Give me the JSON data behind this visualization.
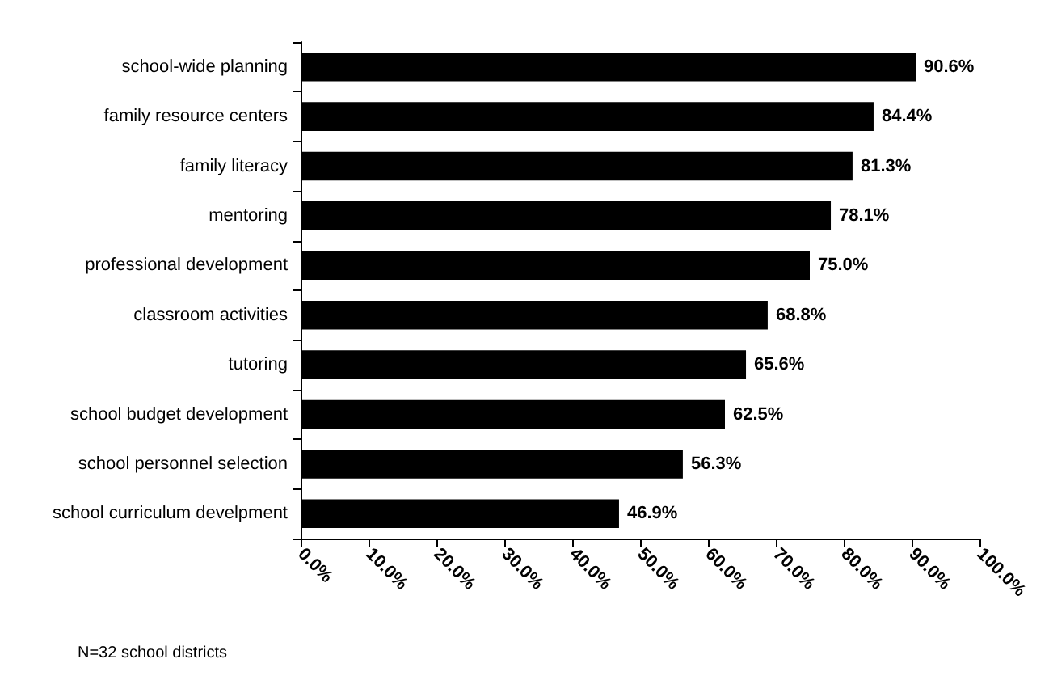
{
  "chart_data": {
    "type": "bar",
    "orientation": "horizontal",
    "categories": [
      "school-wide planning",
      "family resource centers",
      "family literacy",
      "mentoring",
      "professional development",
      "classroom activities",
      "tutoring",
      "school budget development",
      "school personnel selection",
      "school curriculum develpment"
    ],
    "values": [
      90.6,
      84.4,
      81.3,
      78.1,
      75.0,
      68.8,
      65.6,
      62.5,
      56.3,
      46.9
    ],
    "value_labels": [
      "90.6%",
      "84.4%",
      "81.3%",
      "78.1%",
      "75.0%",
      "68.8%",
      "65.6%",
      "62.5%",
      "56.3%",
      "46.9%"
    ],
    "color": "#000000",
    "xlim": [
      0,
      100
    ],
    "xticks": [
      {
        "value": 0,
        "label": "0.0%"
      },
      {
        "value": 10,
        "label": "10.0%"
      },
      {
        "value": 20,
        "label": "20.0%"
      },
      {
        "value": 30,
        "label": "30.0%"
      },
      {
        "value": 40,
        "label": "40.0%"
      },
      {
        "value": 50,
        "label": "50.0%"
      },
      {
        "value": 60,
        "label": "60.0%"
      },
      {
        "value": 70,
        "label": "70.0%"
      },
      {
        "value": 80,
        "label": "80.0%"
      },
      {
        "value": 90,
        "label": "90.0%"
      },
      {
        "value": 100,
        "label": "100.0%"
      }
    ],
    "grid": false,
    "annotations": [
      "N=32 school districts"
    ]
  }
}
